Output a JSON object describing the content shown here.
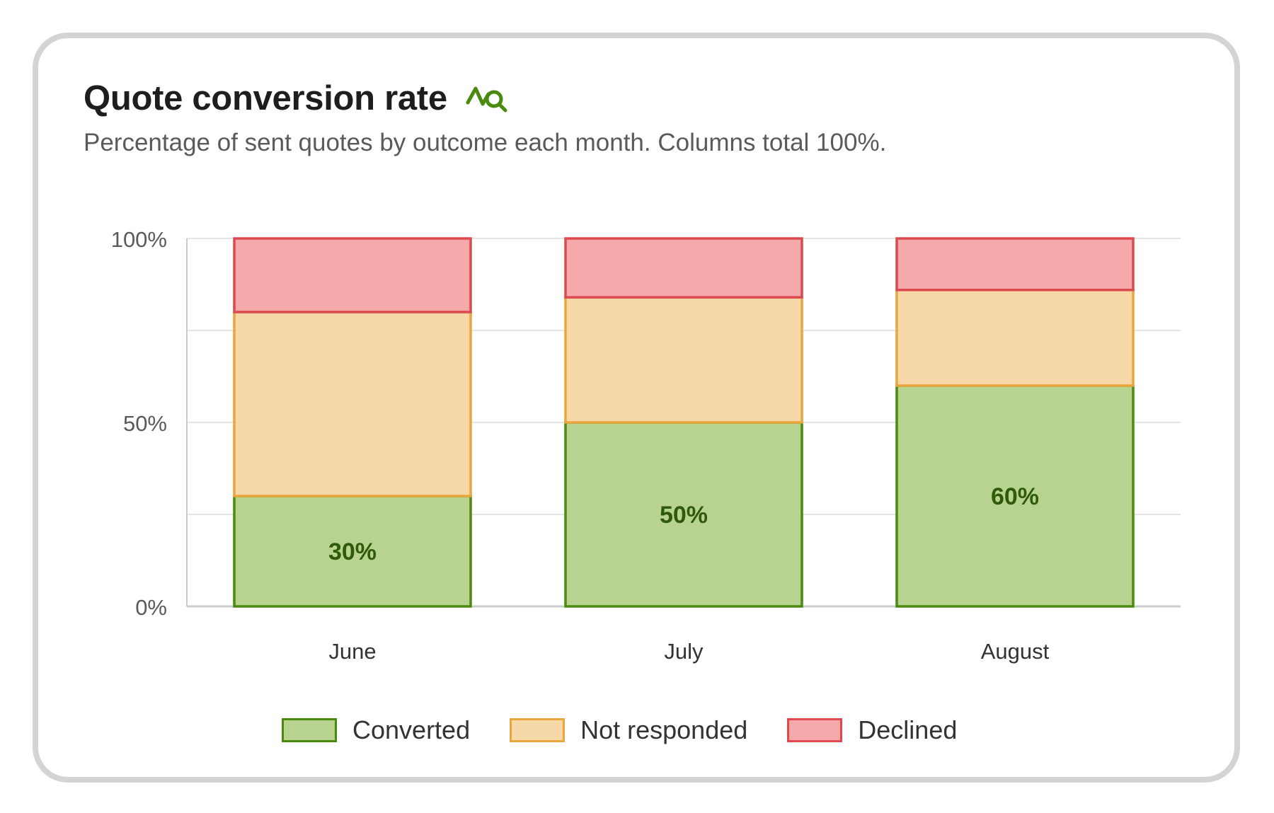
{
  "card": {
    "title": "Quote conversion rate",
    "title_icon": "trend-search-icon",
    "subtitle": "Percentage of sent quotes by outcome each month. Columns total 100%."
  },
  "chart_data": {
    "type": "bar",
    "stacked": true,
    "title": "Quote conversion rate",
    "subtitle": "Percentage of sent quotes by outcome each month. Columns total 100%.",
    "categories": [
      "June",
      "July",
      "August"
    ],
    "series": [
      {
        "name": "Converted",
        "values": [
          30,
          50,
          60
        ],
        "fill": "#b8d390",
        "stroke": "#4a8a0e",
        "data_labels": [
          "30%",
          "50%",
          "60%"
        ],
        "label_color": "#2f5a09"
      },
      {
        "name": "Not responded",
        "values": [
          50,
          34,
          26
        ],
        "fill": "#f7d9a9",
        "stroke": "#eca43c"
      },
      {
        "name": "Declined",
        "values": [
          20,
          16,
          14
        ],
        "fill": "#f5a9ab",
        "stroke": "#dc4a50"
      }
    ],
    "ylim": [
      0,
      100
    ],
    "y_ticks": [
      0,
      50,
      100
    ],
    "y_tick_labels": [
      "0%",
      "50%",
      "100%"
    ],
    "y_gridlines": [
      0,
      25,
      50,
      75,
      100
    ],
    "xlabel": "",
    "ylabel": "",
    "grid": true,
    "legend_position": "bottom-center"
  },
  "colors": {
    "accent": "#4a8a0e",
    "grid": "#e4e4e4",
    "axis": "#cccccc",
    "text": "#333333",
    "muted": "#5a5a5a"
  }
}
